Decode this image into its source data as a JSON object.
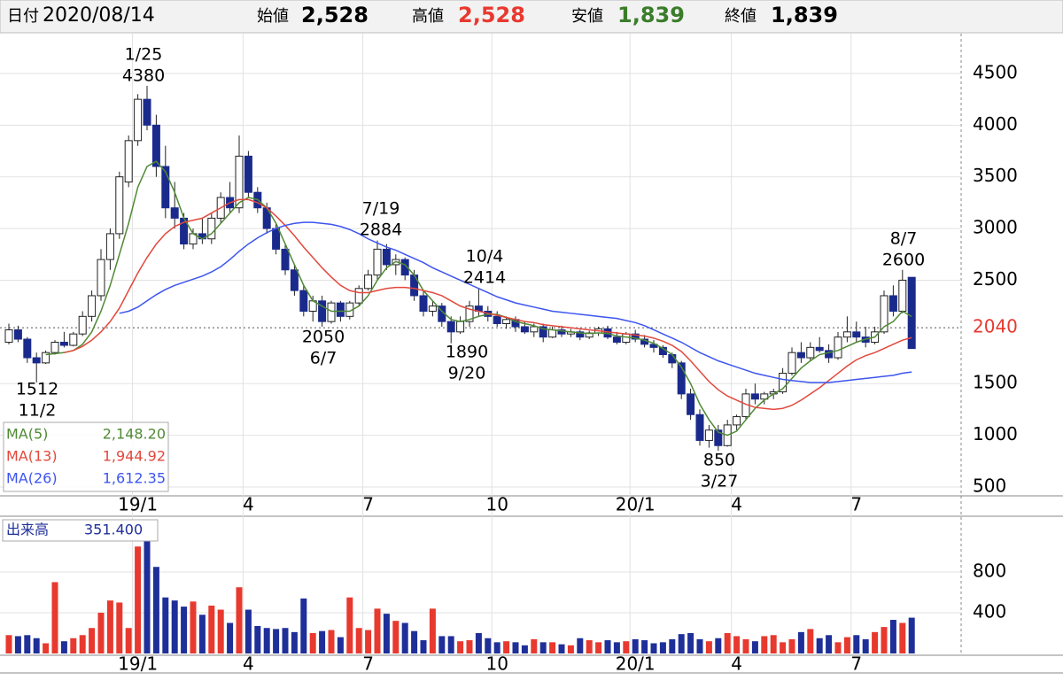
{
  "header": {
    "date_label": "日付",
    "date": "2020/08/14",
    "open_label": "始値",
    "open": "2,528",
    "high_label": "高値",
    "high": "2,528",
    "low_label": "安値",
    "low": "1,839",
    "close_label": "終値",
    "close": "1,839"
  },
  "chart_data": [
    {
      "type": "candlestick",
      "ylim": [
        414,
        4885
      ],
      "yticks": [
        500,
        1000,
        1500,
        2500,
        3000,
        3500,
        4000,
        4500
      ],
      "ref_line": 2040,
      "categories": [
        null,
        null,
        null,
        null,
        null,
        null,
        null,
        null,
        null,
        null,
        null,
        null,
        null,
        null,
        "19/1",
        null,
        null,
        null,
        null,
        null,
        null,
        null,
        null,
        null,
        null,
        null,
        "4",
        null,
        null,
        null,
        null,
        null,
        null,
        null,
        null,
        null,
        null,
        null,
        null,
        "7",
        null,
        null,
        null,
        null,
        null,
        null,
        null,
        null,
        null,
        null,
        null,
        null,
        null,
        "10",
        null,
        null,
        null,
        null,
        null,
        null,
        null,
        null,
        null,
        null,
        null,
        null,
        null,
        null,
        "20/1",
        null,
        null,
        null,
        null,
        null,
        null,
        null,
        null,
        null,
        null,
        "4",
        null,
        null,
        null,
        null,
        null,
        null,
        null,
        null,
        null,
        null,
        null,
        null,
        "7",
        null,
        null,
        null,
        null,
        null,
        null
      ],
      "up_color": "#ffffff",
      "down_color": "#1a2a8c",
      "candles": [
        [
          1900,
          2080,
          1880,
          2020
        ],
        [
          2020,
          2060,
          1900,
          1930
        ],
        [
          1930,
          1950,
          1700,
          1750
        ],
        [
          1750,
          1800,
          1512,
          1700
        ],
        [
          1700,
          1820,
          1690,
          1800
        ],
        [
          1800,
          1920,
          1780,
          1900
        ],
        [
          1900,
          2000,
          1850,
          1870
        ],
        [
          1870,
          2000,
          1860,
          1980
        ],
        [
          1980,
          2200,
          1960,
          2150
        ],
        [
          2150,
          2400,
          2100,
          2350
        ],
        [
          2350,
          2800,
          2300,
          2700
        ],
        [
          2700,
          3000,
          2600,
          2950
        ],
        [
          2950,
          3550,
          2900,
          3500
        ],
        [
          3450,
          3900,
          3400,
          3850
        ],
        [
          3850,
          4300,
          3800,
          4250
        ],
        [
          4250,
          4380,
          3950,
          4000
        ],
        [
          4000,
          4100,
          3500,
          3600
        ],
        [
          3600,
          3800,
          3100,
          3200
        ],
        [
          3200,
          3450,
          3000,
          3100
        ],
        [
          3100,
          3150,
          2800,
          2850
        ],
        [
          2850,
          3000,
          2800,
          2950
        ],
        [
          2950,
          3100,
          2850,
          2900
        ],
        [
          2900,
          3150,
          2850,
          3100
        ],
        [
          3100,
          3350,
          3050,
          3300
        ],
        [
          3300,
          3450,
          3150,
          3200
        ],
        [
          3200,
          3900,
          3150,
          3700
        ],
        [
          3700,
          3750,
          3300,
          3350
        ],
        [
          3350,
          3400,
          3150,
          3200
        ],
        [
          3200,
          3250,
          2950,
          3000
        ],
        [
          3000,
          3050,
          2750,
          2800
        ],
        [
          2800,
          2850,
          2550,
          2600
        ],
        [
          2600,
          2650,
          2350,
          2400
        ],
        [
          2400,
          2450,
          2150,
          2200
        ],
        [
          2200,
          2350,
          2100,
          2300
        ],
        [
          2300,
          2350,
          2050,
          2100
        ],
        [
          2100,
          2300,
          2080,
          2280
        ],
        [
          2280,
          2300,
          2100,
          2150
        ],
        [
          2150,
          2300,
          2120,
          2280
        ],
        [
          2280,
          2450,
          2250,
          2420
        ],
        [
          2420,
          2600,
          2400,
          2550
        ],
        [
          2550,
          2884,
          2500,
          2800
        ],
        [
          2800,
          2850,
          2600,
          2650
        ],
        [
          2650,
          2750,
          2550,
          2700
        ],
        [
          2700,
          2720,
          2500,
          2550
        ],
        [
          2550,
          2600,
          2300,
          2350
        ],
        [
          2350,
          2400,
          2150,
          2200
        ],
        [
          2200,
          2300,
          2150,
          2250
        ],
        [
          2250,
          2280,
          2050,
          2100
        ],
        [
          2100,
          2150,
          1890,
          2000
        ],
        [
          2000,
          2150,
          1980,
          2100
        ],
        [
          2100,
          2300,
          2050,
          2250
        ],
        [
          2250,
          2414,
          2150,
          2200
        ],
        [
          2200,
          2250,
          2100,
          2150
        ],
        [
          2150,
          2200,
          2050,
          2080
        ],
        [
          2080,
          2150,
          2030,
          2120
        ],
        [
          2120,
          2150,
          2000,
          2050
        ],
        [
          2050,
          2100,
          1980,
          2000
        ],
        [
          2000,
          2080,
          1950,
          2050
        ],
        [
          2050,
          2080,
          1900,
          1950
        ],
        [
          1950,
          2050,
          1940,
          2020
        ],
        [
          2020,
          2060,
          1950,
          1980
        ],
        [
          1980,
          2030,
          1950,
          2000
        ],
        [
          2000,
          2020,
          1920,
          1950
        ],
        [
          1950,
          2010,
          1930,
          1990
        ],
        [
          1990,
          2050,
          1960,
          2030
        ],
        [
          2030,
          2060,
          1930,
          1950
        ],
        [
          1950,
          2000,
          1880,
          1900
        ],
        [
          1900,
          2000,
          1880,
          1980
        ],
        [
          1980,
          2020,
          1900,
          1930
        ],
        [
          1930,
          1970,
          1850,
          1880
        ],
        [
          1880,
          1920,
          1800,
          1850
        ],
        [
          1850,
          1870,
          1750,
          1780
        ],
        [
          1780,
          1800,
          1650,
          1700
        ],
        [
          1700,
          1720,
          1350,
          1400
        ],
        [
          1400,
          1450,
          1150,
          1200
        ],
        [
          1200,
          1250,
          900,
          950
        ],
        [
          950,
          1100,
          880,
          1050
        ],
        [
          1050,
          1100,
          850,
          900
        ],
        [
          900,
          1150,
          890,
          1100
        ],
        [
          1100,
          1200,
          1050,
          1180
        ],
        [
          1180,
          1450,
          1150,
          1400
        ],
        [
          1400,
          1500,
          1300,
          1350
        ],
        [
          1350,
          1420,
          1300,
          1400
        ],
        [
          1400,
          1450,
          1350,
          1420
        ],
        [
          1420,
          1650,
          1400,
          1600
        ],
        [
          1600,
          1850,
          1580,
          1800
        ],
        [
          1800,
          1900,
          1700,
          1750
        ],
        [
          1750,
          1900,
          1720,
          1850
        ],
        [
          1850,
          1950,
          1800,
          1820
        ],
        [
          1820,
          1880,
          1700,
          1750
        ],
        [
          1750,
          2000,
          1730,
          1950
        ],
        [
          1950,
          2150,
          1900,
          2000
        ],
        [
          2000,
          2100,
          1900,
          1950
        ],
        [
          1950,
          2050,
          1850,
          1900
        ],
        [
          1900,
          2050,
          1880,
          2000
        ],
        [
          2000,
          2400,
          1980,
          2350
        ],
        [
          2350,
          2450,
          2150,
          2200
        ],
        [
          2200,
          2600,
          2180,
          2500
        ],
        [
          2528,
          2528,
          1839,
          1839
        ]
      ],
      "series": [
        {
          "name": "MA(5)",
          "color": "#4f8a35",
          "last_label": "2,148.20",
          "values": [
            null,
            null,
            null,
            null,
            1780,
            1790,
            1800,
            1820,
            1880,
            2000,
            2200,
            2450,
            2750,
            3050,
            3400,
            3600,
            3650,
            3550,
            3350,
            3100,
            2950,
            2900,
            2950,
            3050,
            3150,
            3250,
            3300,
            3280,
            3200,
            3050,
            2850,
            2650,
            2450,
            2300,
            2250,
            2200,
            2200,
            2200,
            2250,
            2350,
            2500,
            2620,
            2680,
            2650,
            2550,
            2400,
            2300,
            2200,
            2120,
            2100,
            2120,
            2150,
            2170,
            2170,
            2140,
            2100,
            2080,
            2060,
            2030,
            2020,
            2010,
            2000,
            1990,
            1985,
            1990,
            1985,
            1960,
            1950,
            1940,
            1920,
            1890,
            1840,
            1780,
            1660,
            1500,
            1300,
            1150,
            1030,
            1000,
            1040,
            1150,
            1260,
            1340,
            1400,
            1450,
            1550,
            1650,
            1720,
            1780,
            1800,
            1820,
            1860,
            1900,
            1930,
            1950,
            2050,
            2100,
            2200,
            2148.2
          ]
        },
        {
          "name": "MA(13)",
          "color": "#e2483c",
          "last_label": "1,944.92",
          "values": [
            null,
            null,
            null,
            null,
            null,
            null,
            1800,
            1820,
            1860,
            1920,
            2000,
            2100,
            2230,
            2400,
            2570,
            2720,
            2850,
            2950,
            3020,
            3060,
            3080,
            3100,
            3150,
            3200,
            3250,
            3280,
            3280,
            3250,
            3200,
            3120,
            3030,
            2930,
            2820,
            2720,
            2620,
            2530,
            2450,
            2400,
            2380,
            2380,
            2400,
            2420,
            2430,
            2430,
            2420,
            2400,
            2380,
            2350,
            2300,
            2250,
            2220,
            2200,
            2180,
            2160,
            2140,
            2120,
            2100,
            2090,
            2070,
            2060,
            2050,
            2040,
            2030,
            2020,
            2010,
            2000,
            1990,
            1980,
            1970,
            1960,
            1940,
            1910,
            1870,
            1810,
            1720,
            1620,
            1520,
            1440,
            1380,
            1340,
            1300,
            1270,
            1260,
            1250,
            1260,
            1290,
            1340,
            1400,
            1460,
            1530,
            1600,
            1670,
            1730,
            1770,
            1800,
            1840,
            1880,
            1920,
            1944.92
          ]
        },
        {
          "name": "MA(26)",
          "color": "#3d55ee",
          "last_label": "1,612.35",
          "values": [
            null,
            null,
            null,
            null,
            null,
            null,
            null,
            null,
            null,
            null,
            null,
            null,
            2180,
            2200,
            2240,
            2300,
            2360,
            2410,
            2450,
            2480,
            2510,
            2540,
            2580,
            2630,
            2700,
            2780,
            2850,
            2910,
            2960,
            3000,
            3030,
            3050,
            3060,
            3060,
            3050,
            3040,
            3020,
            2990,
            2950,
            2900,
            2860,
            2820,
            2790,
            2750,
            2710,
            2670,
            2620,
            2580,
            2540,
            2500,
            2460,
            2420,
            2380,
            2340,
            2310,
            2280,
            2260,
            2240,
            2220,
            2200,
            2190,
            2180,
            2170,
            2160,
            2150,
            2140,
            2130,
            2110,
            2090,
            2060,
            2020,
            1980,
            1940,
            1900,
            1850,
            1800,
            1760,
            1720,
            1690,
            1660,
            1630,
            1600,
            1580,
            1560,
            1540,
            1530,
            1520,
            1510,
            1510,
            1510,
            1520,
            1530,
            1540,
            1550,
            1560,
            1570,
            1580,
            1600,
            1612.35
          ]
        }
      ],
      "annotations": [
        [
          "1/25",
          "4380"
        ],
        [
          "1512",
          "11/2"
        ],
        [
          "2050",
          "6/7"
        ],
        [
          "7/19",
          "2884"
        ],
        [
          "1890",
          "9/20"
        ],
        [
          "10/4",
          "2414"
        ],
        [
          "850",
          "3/27"
        ],
        [
          "8/7",
          "2600"
        ]
      ]
    },
    {
      "type": "volume",
      "name": "出来高",
      "value_label": "351.400",
      "ylim": [
        0,
        1330
      ],
      "yticks": [
        400,
        800
      ],
      "up_color": "#e8392f",
      "down_color": "#1f2f99",
      "values": [
        180,
        170,
        180,
        150,
        100,
        700,
        120,
        150,
        180,
        250,
        400,
        520,
        500,
        250,
        1050,
        1100,
        850,
        550,
        520,
        460,
        510,
        380,
        470,
        430,
        300,
        650,
        430,
        270,
        250,
        240,
        250,
        210,
        540,
        200,
        220,
        230,
        160,
        550,
        250,
        230,
        440,
        390,
        320,
        300,
        220,
        130,
        440,
        170,
        170,
        120,
        130,
        200,
        150,
        110,
        120,
        110,
        80,
        140,
        110,
        110,
        90,
        80,
        150,
        130,
        110,
        130,
        110,
        120,
        140,
        130,
        100,
        110,
        140,
        190,
        200,
        140,
        120,
        150,
        200,
        170,
        140,
        120,
        170,
        180,
        110,
        140,
        210,
        240,
        150,
        180,
        110,
        160,
        180,
        140,
        210,
        260,
        330,
        300,
        351.4
      ]
    }
  ]
}
